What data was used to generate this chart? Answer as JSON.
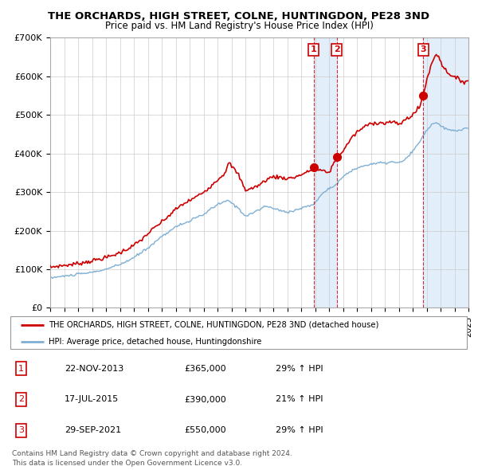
{
  "title": "THE ORCHARDS, HIGH STREET, COLNE, HUNTINGDON, PE28 3ND",
  "subtitle": "Price paid vs. HM Land Registry's House Price Index (HPI)",
  "red_line_color": "#cc0000",
  "blue_line_color": "#7fafd4",
  "shade_color": "#d0e4f7",
  "background_color": "#ffffff",
  "grid_color": "#cccccc",
  "ylim": [
    0,
    700000
  ],
  "yticks": [
    0,
    100000,
    200000,
    300000,
    400000,
    500000,
    600000,
    700000
  ],
  "ytick_labels": [
    "£0",
    "£100K",
    "£200K",
    "£300K",
    "£400K",
    "£500K",
    "£600K",
    "£700K"
  ],
  "xlim_start": 1995,
  "xlim_end": 2025,
  "transactions": [
    {
      "num": 1,
      "date": "22-NOV-2013",
      "price": 365000,
      "hpi_pct": "29%",
      "x_year": 2013.9
    },
    {
      "num": 2,
      "date": "17-JUL-2015",
      "price": 390000,
      "hpi_pct": "21%",
      "x_year": 2015.55
    },
    {
      "num": 3,
      "date": "29-SEP-2021",
      "price": 550000,
      "hpi_pct": "29%",
      "x_year": 2021.75
    }
  ],
  "legend_line1": "THE ORCHARDS, HIGH STREET, COLNE, HUNTINGDON, PE28 3ND (detached house)",
  "legend_line2": "HPI: Average price, detached house, Huntingdonshire",
  "footer1": "Contains HM Land Registry data © Crown copyright and database right 2024.",
  "footer2": "This data is licensed under the Open Government Licence v3.0."
}
